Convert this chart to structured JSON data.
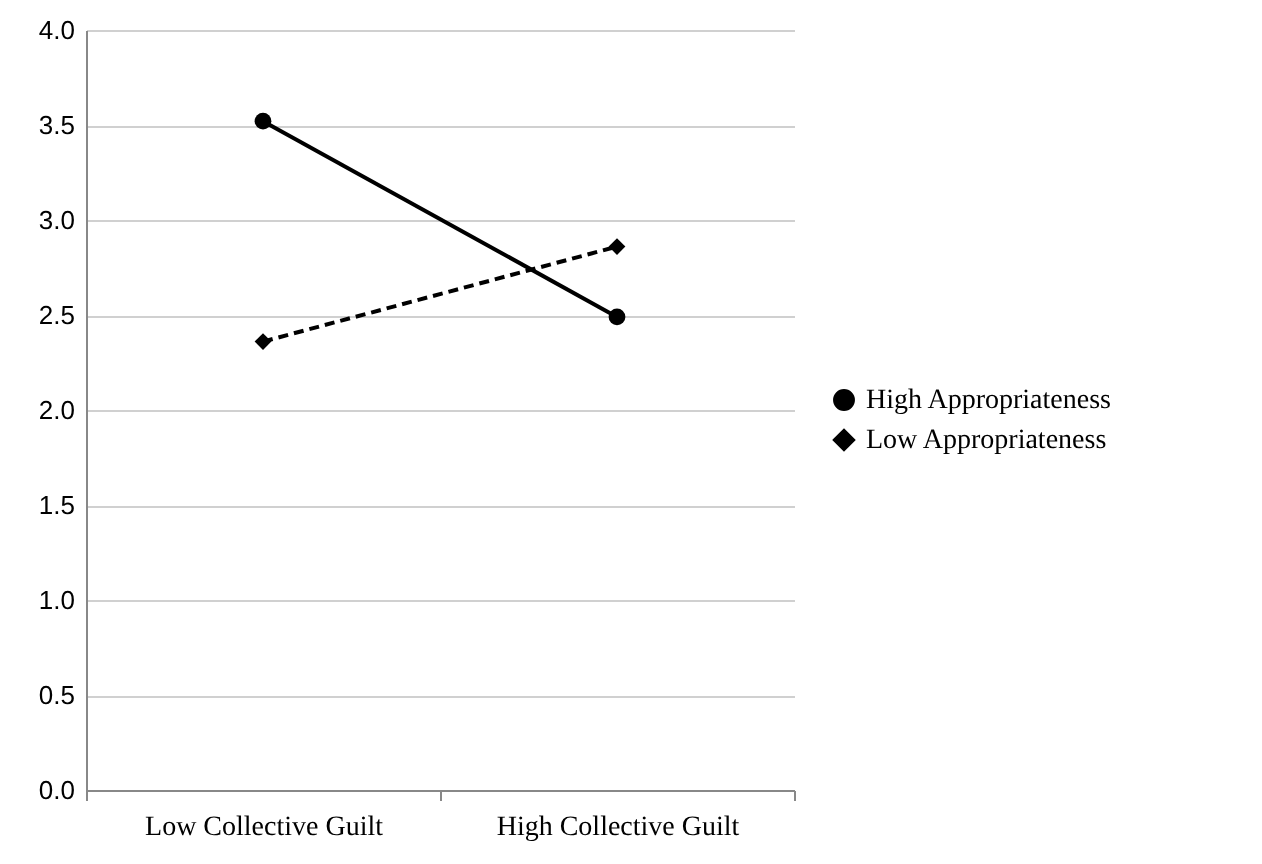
{
  "chart_data": {
    "type": "line",
    "categories": [
      "Low Collective Guilt",
      "High Collective Guilt"
    ],
    "series": [
      {
        "name": "High Appropriateness",
        "color": "#000000",
        "values": [
          3.52,
          2.49
        ],
        "marker": "circle",
        "line_style": "solid"
      },
      {
        "name": "Low Appropriateness",
        "color": "#000000",
        "values": [
          2.36,
          2.86
        ],
        "marker": "diamond",
        "line_style": "dashed"
      }
    ],
    "ylim": [
      0,
      4
    ],
    "yticks": [
      {
        "value": 0,
        "label": "0.0"
      },
      0.5,
      {
        "value": 1,
        "label": "1.0"
      },
      1.5,
      {
        "value": 2,
        "label": "2.0"
      },
      2.5,
      {
        "value": 3,
        "label": "3.0"
      },
      3.5,
      {
        "value": 4,
        "label": "4.0"
      }
    ],
    "grid": "y",
    "legend": "right"
  }
}
